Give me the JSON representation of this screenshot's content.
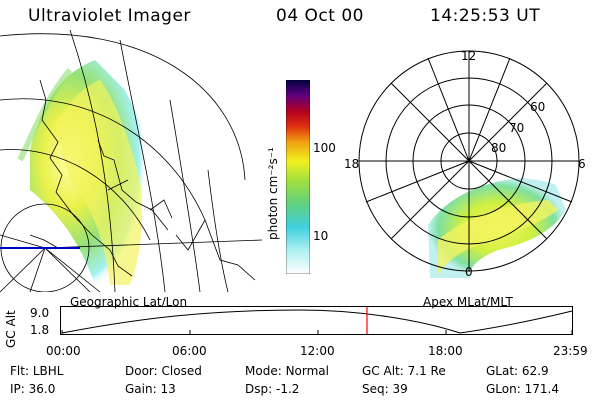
{
  "header": {
    "title": "Ultraviolet Imager",
    "date": "04 Oct 00",
    "time": "14:25:53 UT"
  },
  "colorbar": {
    "ticks": [
      "100",
      "10"
    ],
    "label": "photon cm⁻²s⁻¹"
  },
  "polar_plot": {
    "labels": [
      "12",
      "60",
      "70",
      "80",
      "18",
      "6",
      "0"
    ]
  },
  "panel_labels": {
    "geographic": "Geographic Lat/Lon",
    "apex": "Apex  MLat/MLT"
  },
  "timeline": {
    "ylabel": "GC Alt",
    "y_ticks": [
      "9.0",
      "1.8"
    ],
    "x_ticks": [
      "00:00",
      "06:00",
      "12:00",
      "18:00",
      "23:59"
    ],
    "marker_time": "14:25:53"
  },
  "footer": {
    "row1": [
      {
        "label": "Flt:",
        "value": "LBHL"
      },
      {
        "label": "Door:",
        "value": "Closed"
      },
      {
        "label": "Mode:",
        "value": "Normal"
      },
      {
        "label": "GC Alt:",
        "value": "7.1 Re"
      },
      {
        "label": "GLat:",
        "value": "62.9"
      }
    ],
    "row2": [
      {
        "label": "IP:",
        "value": "36.0"
      },
      {
        "label": "Gain:",
        "value": "13"
      },
      {
        "label": "Dsp:",
        "value": "-1.2"
      },
      {
        "label": "Seq:",
        "value": "39"
      },
      {
        "label": "GLon:",
        "value": "171.4"
      }
    ]
  },
  "colors": {
    "timeline_marker": "#ff0000",
    "blue_line": "#0000cc"
  }
}
